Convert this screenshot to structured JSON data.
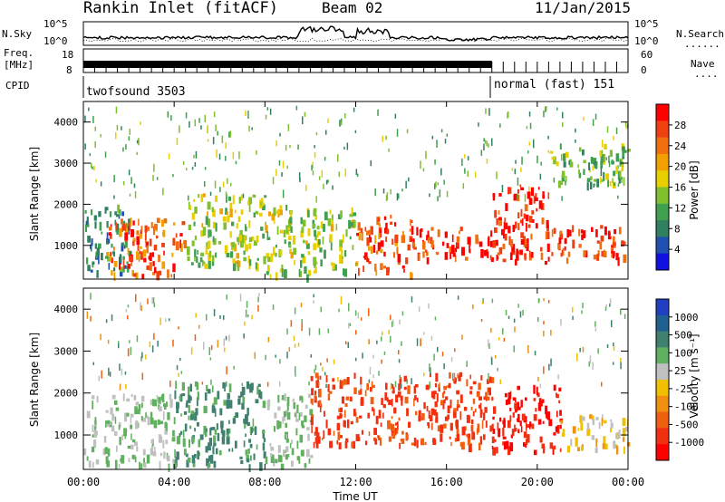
{
  "header": {
    "station": "Rankin Inlet (fitACF)",
    "beam": "Beam 02",
    "date": "11/Jan/2015"
  },
  "strips": {
    "nsky": {
      "label": "N.Sky",
      "left_ticks": [
        "10^5",
        "10^0"
      ],
      "right_ticks": [
        "10^5",
        "10^0"
      ],
      "right_label": "N.Search"
    },
    "freq": {
      "label_line1": "Freq.",
      "label_line2": "[MHz]",
      "left_ticks": [
        "18",
        "8"
      ],
      "right_ticks": [
        "60",
        "0"
      ],
      "right_label": "Nave"
    },
    "cpid": {
      "label": "CPID",
      "modes": [
        {
          "name": "twofsound 3503",
          "start_h": 0,
          "end_h": 18
        },
        {
          "name": "normal (fast) 151",
          "start_h": 18,
          "end_h": 24
        }
      ]
    }
  },
  "colors": {
    "power": [
      "#1010e0",
      "#2050b0",
      "#308060",
      "#40a050",
      "#80c030",
      "#e8d000",
      "#f0a000",
      "#f07010",
      "#f04010",
      "#ff0000"
    ],
    "velocity": [
      "#2040c0",
      "#206090",
      "#408070",
      "#60b060",
      "#c0c0c0",
      "#f0c000",
      "#f09010",
      "#f06010",
      "#f03010",
      "#ff0000"
    ]
  },
  "chart_data": [
    {
      "type": "heatmap",
      "panel": "power",
      "xlabel": "",
      "ylabel": "Slant Range [km]",
      "xlim": [
        0,
        24
      ],
      "ylim": [
        180,
        4500
      ],
      "yticks": [
        "1000",
        "2000",
        "3000",
        "4000"
      ],
      "colorbar": {
        "label": "Power [dB]",
        "ticks": [
          "4",
          "8",
          "12",
          "16",
          "20",
          "24",
          "28"
        ],
        "range": [
          0,
          30
        ]
      },
      "features": [
        {
          "t0": 0.0,
          "t1": 2.0,
          "r0": 300,
          "r1": 2000,
          "value": 8
        },
        {
          "t0": 1.0,
          "t1": 4.5,
          "r0": 300,
          "r1": 1700,
          "value": 24
        },
        {
          "t0": 4.5,
          "t1": 8.0,
          "r0": 500,
          "r1": 2300,
          "value": 14
        },
        {
          "t0": 8.0,
          "t1": 12.0,
          "r0": 300,
          "r1": 2000,
          "value": 14
        },
        {
          "t0": 12.0,
          "t1": 14.5,
          "r0": 300,
          "r1": 1800,
          "value": 24
        },
        {
          "t0": 14.5,
          "t1": 18.0,
          "r0": 700,
          "r1": 1500,
          "value": 26
        },
        {
          "t0": 18.0,
          "t1": 20.5,
          "r0": 600,
          "r1": 2500,
          "value": 28
        },
        {
          "t0": 20.5,
          "t1": 24.0,
          "r0": 700,
          "r1": 1500,
          "value": 26
        },
        {
          "t0": 20.5,
          "t1": 24.0,
          "r0": 2500,
          "r1": 3500,
          "value": 12
        }
      ]
    },
    {
      "type": "heatmap",
      "panel": "velocity",
      "xlabel": "Time UT",
      "ylabel": "Slant Range [km]",
      "xlim": [
        0,
        24
      ],
      "ylim": [
        180,
        4500
      ],
      "xticks": [
        "00:00",
        "04:00",
        "08:00",
        "12:00",
        "16:00",
        "20:00",
        "00:00"
      ],
      "yticks": [
        "1000",
        "2000",
        "3000",
        "4000"
      ],
      "colorbar": {
        "label": "Velocity [m s⁻¹]",
        "ticks": [
          "1000",
          "500",
          "100",
          "25",
          "-25",
          "-100",
          "-500",
          "-1000"
        ]
      },
      "features": [
        {
          "t0": 0.0,
          "t1": 4.0,
          "r0": 300,
          "r1": 2000,
          "value": 100
        },
        {
          "t0": 4.0,
          "t1": 8.0,
          "r0": 300,
          "r1": 2300,
          "value": 300
        },
        {
          "t0": 8.0,
          "t1": 10.0,
          "r0": 300,
          "r1": 2000,
          "value": 100
        },
        {
          "t0": 10.0,
          "t1": 18.0,
          "r0": 800,
          "r1": 2500,
          "value": -300
        },
        {
          "t0": 18.0,
          "t1": 21.0,
          "r0": 600,
          "r1": 2200,
          "value": -600
        },
        {
          "t0": 21.0,
          "t1": 24.0,
          "r0": 700,
          "r1": 1500,
          "value": 0
        }
      ]
    }
  ]
}
